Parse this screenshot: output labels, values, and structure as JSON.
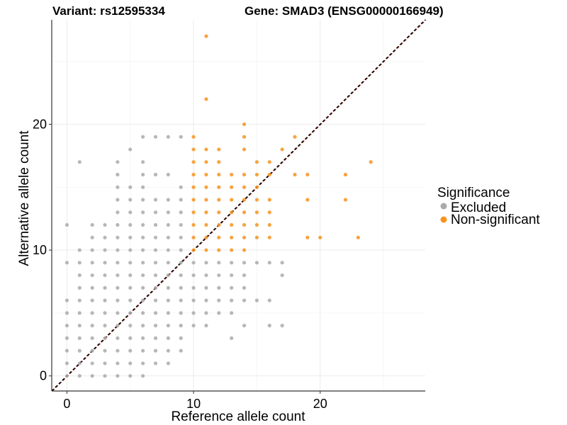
{
  "chart_data": {
    "type": "scatter",
    "title_left": "Variant: rs12595334",
    "title_right": "Gene: SMAD3 (ENSG00000166949)",
    "xlabel": "Reference allele count",
    "ylabel": "Alternative allele count",
    "xlim": [
      -1.2,
      28.3
    ],
    "ylim": [
      -1.2,
      28.3
    ],
    "xticks": [
      0,
      10,
      20
    ],
    "yticks": [
      0,
      10,
      20
    ],
    "grid": true,
    "reference_line": {
      "slope": 1,
      "intercept": 0,
      "colors": [
        "#c0392b",
        "#000000"
      ],
      "style": "dashed"
    },
    "legend": {
      "title": "Significance",
      "position": "right",
      "entries": [
        {
          "label": "Excluded",
          "color": "#aaaaaa"
        },
        {
          "label": "Non-significant",
          "color": "#f7931e"
        }
      ]
    },
    "series": [
      {
        "name": "Excluded",
        "color": "#aaaaaa",
        "points": [
          [
            0,
            0
          ],
          [
            0,
            1
          ],
          [
            0,
            2
          ],
          [
            0,
            3
          ],
          [
            0,
            4
          ],
          [
            0,
            5
          ],
          [
            0,
            6
          ],
          [
            0,
            9
          ],
          [
            0,
            12
          ],
          [
            1,
            0
          ],
          [
            1,
            1
          ],
          [
            1,
            2
          ],
          [
            1,
            3
          ],
          [
            1,
            4
          ],
          [
            1,
            5
          ],
          [
            1,
            6
          ],
          [
            1,
            7
          ],
          [
            1,
            8
          ],
          [
            1,
            9
          ],
          [
            1,
            10
          ],
          [
            1,
            17
          ],
          [
            2,
            0
          ],
          [
            2,
            1
          ],
          [
            2,
            2
          ],
          [
            2,
            3
          ],
          [
            2,
            4
          ],
          [
            2,
            5
          ],
          [
            2,
            6
          ],
          [
            2,
            7
          ],
          [
            2,
            8
          ],
          [
            2,
            9
          ],
          [
            2,
            10
          ],
          [
            2,
            11
          ],
          [
            2,
            12
          ],
          [
            3,
            0
          ],
          [
            3,
            1
          ],
          [
            3,
            2
          ],
          [
            3,
            3
          ],
          [
            3,
            4
          ],
          [
            3,
            5
          ],
          [
            3,
            6
          ],
          [
            3,
            7
          ],
          [
            3,
            8
          ],
          [
            3,
            9
          ],
          [
            3,
            10
          ],
          [
            3,
            11
          ],
          [
            3,
            12
          ],
          [
            4,
            0
          ],
          [
            4,
            1
          ],
          [
            4,
            2
          ],
          [
            4,
            3
          ],
          [
            4,
            4
          ],
          [
            4,
            5
          ],
          [
            4,
            6
          ],
          [
            4,
            7
          ],
          [
            4,
            8
          ],
          [
            4,
            9
          ],
          [
            4,
            10
          ],
          [
            4,
            11
          ],
          [
            4,
            12
          ],
          [
            4,
            13
          ],
          [
            4,
            14
          ],
          [
            4,
            15
          ],
          [
            4,
            16
          ],
          [
            4,
            17
          ],
          [
            5,
            0
          ],
          [
            5,
            1
          ],
          [
            5,
            2
          ],
          [
            5,
            3
          ],
          [
            5,
            4
          ],
          [
            5,
            5
          ],
          [
            5,
            6
          ],
          [
            5,
            7
          ],
          [
            5,
            8
          ],
          [
            5,
            9
          ],
          [
            5,
            10
          ],
          [
            5,
            11
          ],
          [
            5,
            12
          ],
          [
            5,
            13
          ],
          [
            5,
            14
          ],
          [
            5,
            15
          ],
          [
            5,
            18
          ],
          [
            6,
            0
          ],
          [
            6,
            1
          ],
          [
            6,
            2
          ],
          [
            6,
            3
          ],
          [
            6,
            4
          ],
          [
            6,
            5
          ],
          [
            6,
            6
          ],
          [
            6,
            7
          ],
          [
            6,
            8
          ],
          [
            6,
            9
          ],
          [
            6,
            10
          ],
          [
            6,
            11
          ],
          [
            6,
            12
          ],
          [
            6,
            13
          ],
          [
            6,
            14
          ],
          [
            6,
            15
          ],
          [
            6,
            16
          ],
          [
            6,
            17
          ],
          [
            6,
            19
          ],
          [
            7,
            1
          ],
          [
            7,
            2
          ],
          [
            7,
            3
          ],
          [
            7,
            4
          ],
          [
            7,
            5
          ],
          [
            7,
            6
          ],
          [
            7,
            7
          ],
          [
            7,
            8
          ],
          [
            7,
            9
          ],
          [
            7,
            10
          ],
          [
            7,
            11
          ],
          [
            7,
            12
          ],
          [
            7,
            13
          ],
          [
            7,
            14
          ],
          [
            7,
            16
          ],
          [
            7,
            19
          ],
          [
            8,
            1
          ],
          [
            8,
            2
          ],
          [
            8,
            3
          ],
          [
            8,
            4
          ],
          [
            8,
            5
          ],
          [
            8,
            6
          ],
          [
            8,
            7
          ],
          [
            8,
            8
          ],
          [
            8,
            9
          ],
          [
            8,
            10
          ],
          [
            8,
            11
          ],
          [
            8,
            12
          ],
          [
            8,
            13
          ],
          [
            8,
            14
          ],
          [
            8,
            16
          ],
          [
            8,
            19
          ],
          [
            9,
            2
          ],
          [
            9,
            3
          ],
          [
            9,
            4
          ],
          [
            9,
            5
          ],
          [
            9,
            6
          ],
          [
            9,
            7
          ],
          [
            9,
            8
          ],
          [
            9,
            9
          ],
          [
            9,
            10
          ],
          [
            9,
            11
          ],
          [
            9,
            12
          ],
          [
            9,
            13
          ],
          [
            9,
            14
          ],
          [
            9,
            15
          ],
          [
            9,
            19
          ],
          [
            10,
            4
          ],
          [
            10,
            5
          ],
          [
            10,
            6
          ],
          [
            10,
            7
          ],
          [
            10,
            8
          ],
          [
            10,
            9
          ],
          [
            11,
            4
          ],
          [
            11,
            5
          ],
          [
            11,
            6
          ],
          [
            11,
            7
          ],
          [
            11,
            8
          ],
          [
            11,
            9
          ],
          [
            12,
            5
          ],
          [
            12,
            6
          ],
          [
            12,
            7
          ],
          [
            12,
            8
          ],
          [
            12,
            9
          ],
          [
            13,
            3
          ],
          [
            13,
            5
          ],
          [
            13,
            6
          ],
          [
            13,
            7
          ],
          [
            13,
            8
          ],
          [
            13,
            9
          ],
          [
            14,
            4
          ],
          [
            14,
            6
          ],
          [
            14,
            7
          ],
          [
            14,
            8
          ],
          [
            14,
            9
          ],
          [
            15,
            6
          ],
          [
            15,
            9
          ],
          [
            16,
            4
          ],
          [
            16,
            6
          ],
          [
            16,
            9
          ],
          [
            17,
            4
          ],
          [
            17,
            8
          ],
          [
            17,
            9
          ]
        ]
      },
      {
        "name": "Non-significant",
        "color": "#f7931e",
        "points": [
          [
            10,
            10
          ],
          [
            10,
            11
          ],
          [
            10,
            12
          ],
          [
            10,
            13
          ],
          [
            10,
            14
          ],
          [
            10,
            15
          ],
          [
            10,
            16
          ],
          [
            10,
            17
          ],
          [
            10,
            18
          ],
          [
            10,
            19
          ],
          [
            11,
            10
          ],
          [
            11,
            11
          ],
          [
            11,
            12
          ],
          [
            11,
            13
          ],
          [
            11,
            14
          ],
          [
            11,
            15
          ],
          [
            11,
            16
          ],
          [
            11,
            17
          ],
          [
            11,
            18
          ],
          [
            11,
            22
          ],
          [
            11,
            27
          ],
          [
            12,
            10
          ],
          [
            12,
            11
          ],
          [
            12,
            12
          ],
          [
            12,
            13
          ],
          [
            12,
            14
          ],
          [
            12,
            15
          ],
          [
            12,
            16
          ],
          [
            12,
            17
          ],
          [
            12,
            18
          ],
          [
            13,
            10
          ],
          [
            13,
            11
          ],
          [
            13,
            12
          ],
          [
            13,
            13
          ],
          [
            13,
            14
          ],
          [
            13,
            15
          ],
          [
            13,
            16
          ],
          [
            14,
            10
          ],
          [
            14,
            11
          ],
          [
            14,
            12
          ],
          [
            14,
            13
          ],
          [
            14,
            14
          ],
          [
            14,
            15
          ],
          [
            14,
            16
          ],
          [
            14,
            18
          ],
          [
            14,
            19
          ],
          [
            14,
            20
          ],
          [
            15,
            11
          ],
          [
            15,
            12
          ],
          [
            15,
            13
          ],
          [
            15,
            14
          ],
          [
            15,
            15
          ],
          [
            15,
            16
          ],
          [
            15,
            17
          ],
          [
            16,
            11
          ],
          [
            16,
            12
          ],
          [
            16,
            13
          ],
          [
            16,
            14
          ],
          [
            16,
            16
          ],
          [
            16,
            17
          ],
          [
            17,
            18
          ],
          [
            18,
            16
          ],
          [
            18,
            19
          ],
          [
            19,
            11
          ],
          [
            19,
            14
          ],
          [
            19,
            16
          ],
          [
            20,
            11
          ],
          [
            22,
            14
          ],
          [
            22,
            16
          ],
          [
            23,
            11
          ],
          [
            24,
            17
          ]
        ]
      }
    ]
  }
}
